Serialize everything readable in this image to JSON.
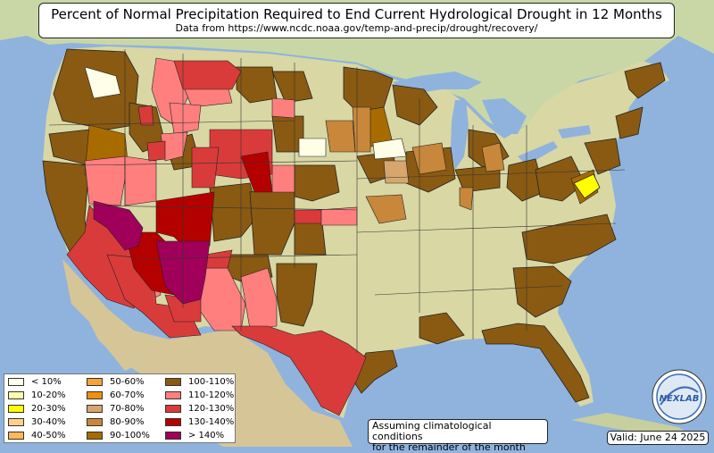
{
  "header": {
    "title": "Percent of Normal Precipitation Required to End Current Hydrological Drought in 12 Months",
    "subtitle": "Data from https://www.ncdc.noaa.gov/temp-and-precip/drought/recovery/"
  },
  "legend": {
    "items": [
      {
        "label": "< 10%",
        "color": "#fffff0"
      },
      {
        "label": "10-20%",
        "color": "#ffffaa"
      },
      {
        "label": "20-30%",
        "color": "#ffff00"
      },
      {
        "label": "30-40%",
        "color": "#ffd08a"
      },
      {
        "label": "40-50%",
        "color": "#ffb855"
      },
      {
        "label": "50-60%",
        "color": "#f5a33a"
      },
      {
        "label": "60-70%",
        "color": "#ef8f10"
      },
      {
        "label": "70-80%",
        "color": "#d6a66e"
      },
      {
        "label": "80-90%",
        "color": "#c8873a"
      },
      {
        "label": "90-100%",
        "color": "#a86b00"
      },
      {
        "label": "100-110%",
        "color": "#8a5a12"
      },
      {
        "label": "110-120%",
        "color": "#ff7f7f"
      },
      {
        "label": "120-130%",
        "color": "#d93b3b"
      },
      {
        "label": "130-140%",
        "color": "#b50000"
      },
      {
        "label": "> 140%",
        "color": "#a0005a"
      }
    ]
  },
  "footnote": {
    "line1": "Assuming climatological conditions",
    "line2": "for the remainder of the month"
  },
  "valid": "Valid: June 24 2025",
  "logo": {
    "text": "NEXLAB"
  },
  "colors": {
    "ocean": "#8fb3dd",
    "land_north": "#c8d8a8",
    "land_south": "#d8d7a6",
    "mexico": "#d8c89a",
    "border": "#222222"
  }
}
